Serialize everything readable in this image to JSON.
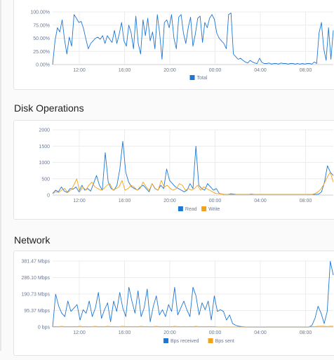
{
  "sections": [
    {
      "id": "cpu",
      "title": "",
      "chart_data": {
        "type": "line",
        "x_ticks": [
          "12:00",
          "16:00",
          "20:00",
          "00:00",
          "04:00",
          "08:00"
        ],
        "y_ticks": [
          "0.00%",
          "25.00%",
          "50.00%",
          "75.00%",
          "100.00%"
        ],
        "ylim": [
          0,
          100
        ],
        "grid": true,
        "legend_position": "bottom-center",
        "series": [
          {
            "name": "Total",
            "color": "#1f77d4",
            "values": [
              0,
              45,
              70,
              62,
              85,
              48,
              20,
              52,
              35,
              95,
              88,
              80,
              82,
              68,
              48,
              30,
              40,
              45,
              50,
              52,
              48,
              55,
              40,
              55,
              48,
              42,
              65,
              40,
              58,
              80,
              45,
              35,
              75,
              60,
              30,
              92,
              40,
              20,
              85,
              55,
              88,
              45,
              62,
              30,
              95,
              60,
              10,
              80,
              85,
              70,
              95,
              50,
              30,
              90,
              95,
              60,
              40,
              70,
              90,
              35,
              58,
              88,
              92,
              42,
              80,
              70,
              88,
              95,
              86,
              60,
              50,
              45,
              40,
              30,
              95,
              98,
              20,
              15,
              10,
              12,
              8,
              5,
              3,
              8,
              5,
              3,
              2,
              12,
              4,
              2,
              2,
              3,
              1,
              2,
              2,
              1,
              3,
              2,
              2,
              1,
              2,
              2,
              1,
              2,
              1,
              2,
              1,
              2,
              2,
              1,
              5,
              2,
              60,
              80,
              30,
              8,
              70,
              10,
              65
            ]
          }
        ]
      }
    },
    {
      "id": "disk",
      "title": "Disk Operations",
      "chart_data": {
        "type": "line",
        "x_ticks": [
          "12:00",
          "16:00",
          "20:00",
          "00:00",
          "04:00",
          "08:00"
        ],
        "y_ticks": [
          "0",
          "500",
          "1000",
          "1500",
          "2000"
        ],
        "ylim": [
          0,
          2000
        ],
        "grid": true,
        "legend_position": "bottom-center",
        "series": [
          {
            "name": "Read",
            "color": "#1f77d4",
            "values": [
              50,
              150,
              100,
              250,
              120,
              80,
              200,
              180,
              250,
              100,
              300,
              150,
              200,
              120,
              350,
              600,
              300,
              150,
              1300,
              400,
              200,
              150,
              300,
              800,
              1650,
              700,
              400,
              250,
              200,
              150,
              250,
              300,
              200,
              100,
              350,
              200,
              150,
              300,
              200,
              800,
              450,
              350,
              250,
              200,
              150,
              100,
              150,
              350,
              200,
              1500,
              300,
              200,
              150,
              350,
              250,
              150,
              200,
              50,
              30,
              20,
              20,
              40,
              30,
              20,
              20,
              20,
              20,
              20,
              30,
              20,
              20,
              20,
              20,
              20,
              20,
              20,
              20,
              20,
              20,
              20,
              20,
              20,
              20,
              20,
              20,
              20,
              20,
              20,
              20,
              20,
              20,
              30,
              100,
              400,
              900,
              700,
              600
            ]
          },
          {
            "name": "Write",
            "color": "#f2a31b",
            "values": [
              40,
              100,
              80,
              150,
              200,
              80,
              150,
              300,
              500,
              100,
              250,
              150,
              300,
              400,
              250,
              200,
              150,
              200,
              300,
              350,
              150,
              200,
              250,
              450,
              150,
              200,
              300,
              250,
              150,
              200,
              400,
              250,
              150,
              350,
              200,
              150,
              450,
              250,
              300,
              200,
              150,
              200,
              350,
              300,
              150,
              200,
              150,
              200,
              300,
              150,
              250,
              200,
              150,
              100,
              50,
              40,
              30,
              20,
              20,
              20,
              20,
              20,
              20,
              20,
              20,
              20,
              20,
              20,
              20,
              20,
              20,
              20,
              20,
              20,
              20,
              20,
              20,
              20,
              20,
              20,
              20,
              20,
              20,
              20,
              20,
              20,
              20,
              50,
              100,
              200,
              350,
              550,
              700,
              400
            ]
          }
        ]
      }
    },
    {
      "id": "network",
      "title": "Network",
      "chart_data": {
        "type": "line",
        "x_ticks": [
          "12:00",
          "16:00",
          "20:00",
          "00:00",
          "04:00",
          "08:00"
        ],
        "y_ticks": [
          "0 bps",
          "95.37 Mbps",
          "190.73 Mbps",
          "286.10 Mbps",
          "381.47 Mbps"
        ],
        "ylim": [
          0,
          381.47
        ],
        "grid": true,
        "legend_position": "bottom-center",
        "series": [
          {
            "name": "Bps received",
            "color": "#1f77d4",
            "values": [
              0,
              190,
              120,
              80,
              60,
              150,
              90,
              110,
              130,
              40,
              100,
              80,
              150,
              60,
              110,
              200,
              50,
              100,
              140,
              30,
              150,
              90,
              200,
              110,
              60,
              230,
              150,
              80,
              210,
              60,
              110,
              220,
              30,
              120,
              180,
              70,
              100,
              60,
              130,
              90,
              230,
              70,
              110,
              150,
              100,
              60,
              230,
              180,
              70,
              140,
              100,
              150,
              40,
              180,
              90,
              100,
              90,
              40,
              70,
              20,
              10,
              5,
              2,
              1,
              0,
              0,
              0,
              0,
              0,
              0,
              0,
              0,
              0,
              0,
              0,
              0,
              0,
              0,
              0,
              0,
              0,
              0,
              0,
              0,
              0,
              10,
              50,
              120,
              80,
              20,
              90,
              380,
              300
            ]
          },
          {
            "name": "Bps sent",
            "color": "#f2a31b",
            "values": [
              2,
              3,
              2,
              4,
              2,
              3,
              2,
              3,
              2,
              4,
              2,
              3,
              2,
              3,
              4,
              2,
              3,
              2,
              4,
              2,
              3,
              2,
              3,
              4,
              2,
              3,
              2,
              3,
              2,
              4,
              2,
              3,
              2,
              3,
              4,
              2,
              3,
              2,
              3,
              2,
              4,
              3,
              2,
              3,
              2,
              3,
              2,
              4,
              2,
              3,
              2,
              3,
              2,
              2,
              1,
              1,
              1,
              1,
              1,
              1,
              1,
              1,
              1,
              1,
              1,
              1,
              1,
              1,
              1,
              1,
              1,
              1,
              1,
              1,
              1,
              1,
              1,
              1,
              1,
              1,
              1,
              1,
              1,
              1,
              1,
              2,
              3,
              4,
              5,
              4,
              3,
              5,
              4
            ]
          }
        ]
      }
    }
  ]
}
